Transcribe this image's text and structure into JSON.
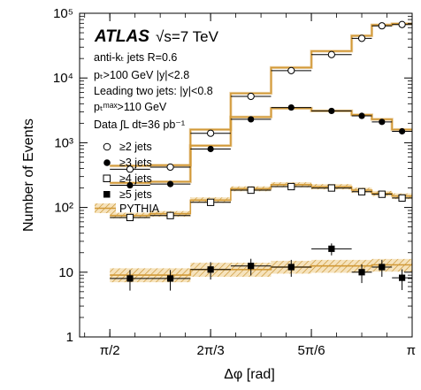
{
  "chart_data": {
    "type": "scatter",
    "xlabel": "Δφ [rad]",
    "ylabel": "Number of Events",
    "xlim": [
      1.4137,
      3.1416
    ],
    "ylim": [
      1,
      100000
    ],
    "yscale": "log",
    "grid": false,
    "legend_position": "left",
    "x_ticks": [
      {
        "value": 1.5708,
        "label": "π/2"
      },
      {
        "value": 2.0944,
        "label": "2π/3"
      },
      {
        "value": 2.618,
        "label": "5π/6"
      },
      {
        "value": 3.1416,
        "label": "π"
      }
    ],
    "y_ticks": [
      {
        "value": 1,
        "label": "1"
      },
      {
        "value": 10,
        "label": "10"
      },
      {
        "value": 100,
        "label": "10²"
      },
      {
        "value": 1000,
        "label": "10³"
      },
      {
        "value": 10000,
        "label": "10⁴"
      },
      {
        "value": 100000,
        "label": "10⁵"
      }
    ],
    "bin_edges": [
      1.5708,
      1.7802,
      1.9897,
      2.1991,
      2.4086,
      2.618,
      2.8274,
      2.9322,
      3.0369,
      3.1416
    ],
    "annotations": {
      "experiment": "ATLAS",
      "energy": "√s=7 TeV",
      "lines": [
        "anti-kₜ jets R=0.6",
        "pₜ>100 GeV   |y|<2.8",
        "Leading two jets: |y|<0.8",
        "pₜᵐᵃˣ>110 GeV",
        "Data ∫L dt=36 pb⁻¹"
      ]
    },
    "legend": [
      "≥2 jets",
      "≥3 jets",
      "≥4 jets",
      "≥5 jets",
      "PYTHIA"
    ],
    "colors": {
      "pythia_line": "#D29A38",
      "pythia_band": "#C8922E",
      "data": "#000000"
    },
    "series": [
      {
        "name": "≥2 jets",
        "marker": "open-circle",
        "x": [
          1.6755,
          1.885,
          2.0944,
          2.3038,
          2.5133,
          2.7227,
          2.8798,
          2.9845,
          3.0892
        ],
        "y": [
          390,
          420,
          1400,
          5200,
          13000,
          23000,
          41000,
          64000,
          67000
        ],
        "mc": [
          440,
          450,
          1600,
          5800,
          14500,
          26000,
          45000,
          66000,
          69000
        ]
      },
      {
        "name": "≥3 jets",
        "marker": "filled-circle",
        "x": [
          1.6755,
          1.885,
          2.0944,
          2.3038,
          2.5133,
          2.7227,
          2.8798,
          2.9845,
          3.0892
        ],
        "y": [
          220,
          230,
          800,
          2300,
          3500,
          3100,
          2600,
          2100,
          1500
        ],
        "mc": [
          240,
          250,
          900,
          2500,
          3400,
          3100,
          2700,
          2300,
          1600
        ]
      },
      {
        "name": "≥4 jets",
        "marker": "open-square",
        "x": [
          1.6755,
          1.885,
          2.0944,
          2.3038,
          2.5133,
          2.7227,
          2.8798,
          2.9845,
          3.0892
        ],
        "y": [
          70,
          75,
          120,
          185,
          210,
          200,
          175,
          160,
          140
        ],
        "mc": [
          75,
          80,
          130,
          195,
          225,
          210,
          185,
          165,
          150
        ],
        "mc_low": [
          68,
          72,
          118,
          178,
          205,
          190,
          168,
          150,
          135
        ],
        "mc_high": [
          83,
          88,
          143,
          212,
          245,
          230,
          202,
          180,
          165
        ]
      },
      {
        "name": "≥5 jets",
        "marker": "filled-square",
        "x": [
          1.6755,
          1.885,
          2.0944,
          2.3038,
          2.5133,
          2.7227,
          2.8798,
          2.9845,
          3.0892
        ],
        "y": [
          8,
          8,
          11,
          12.5,
          12,
          23,
          10,
          12,
          8.2
        ],
        "y_err": [
          2.8,
          2.8,
          3.3,
          3.6,
          3.5,
          4.8,
          3.2,
          3.5,
          2.9
        ],
        "mc": [
          9,
          9,
          11,
          11,
          12,
          12.5,
          12.5,
          13,
          13
        ],
        "mc_low": [
          7,
          7,
          8.5,
          8.5,
          9.5,
          9.8,
          9.8,
          10.2,
          10.2
        ],
        "mc_high": [
          11.5,
          11.5,
          14,
          14,
          15,
          15.5,
          15.5,
          16,
          16
        ]
      }
    ]
  }
}
